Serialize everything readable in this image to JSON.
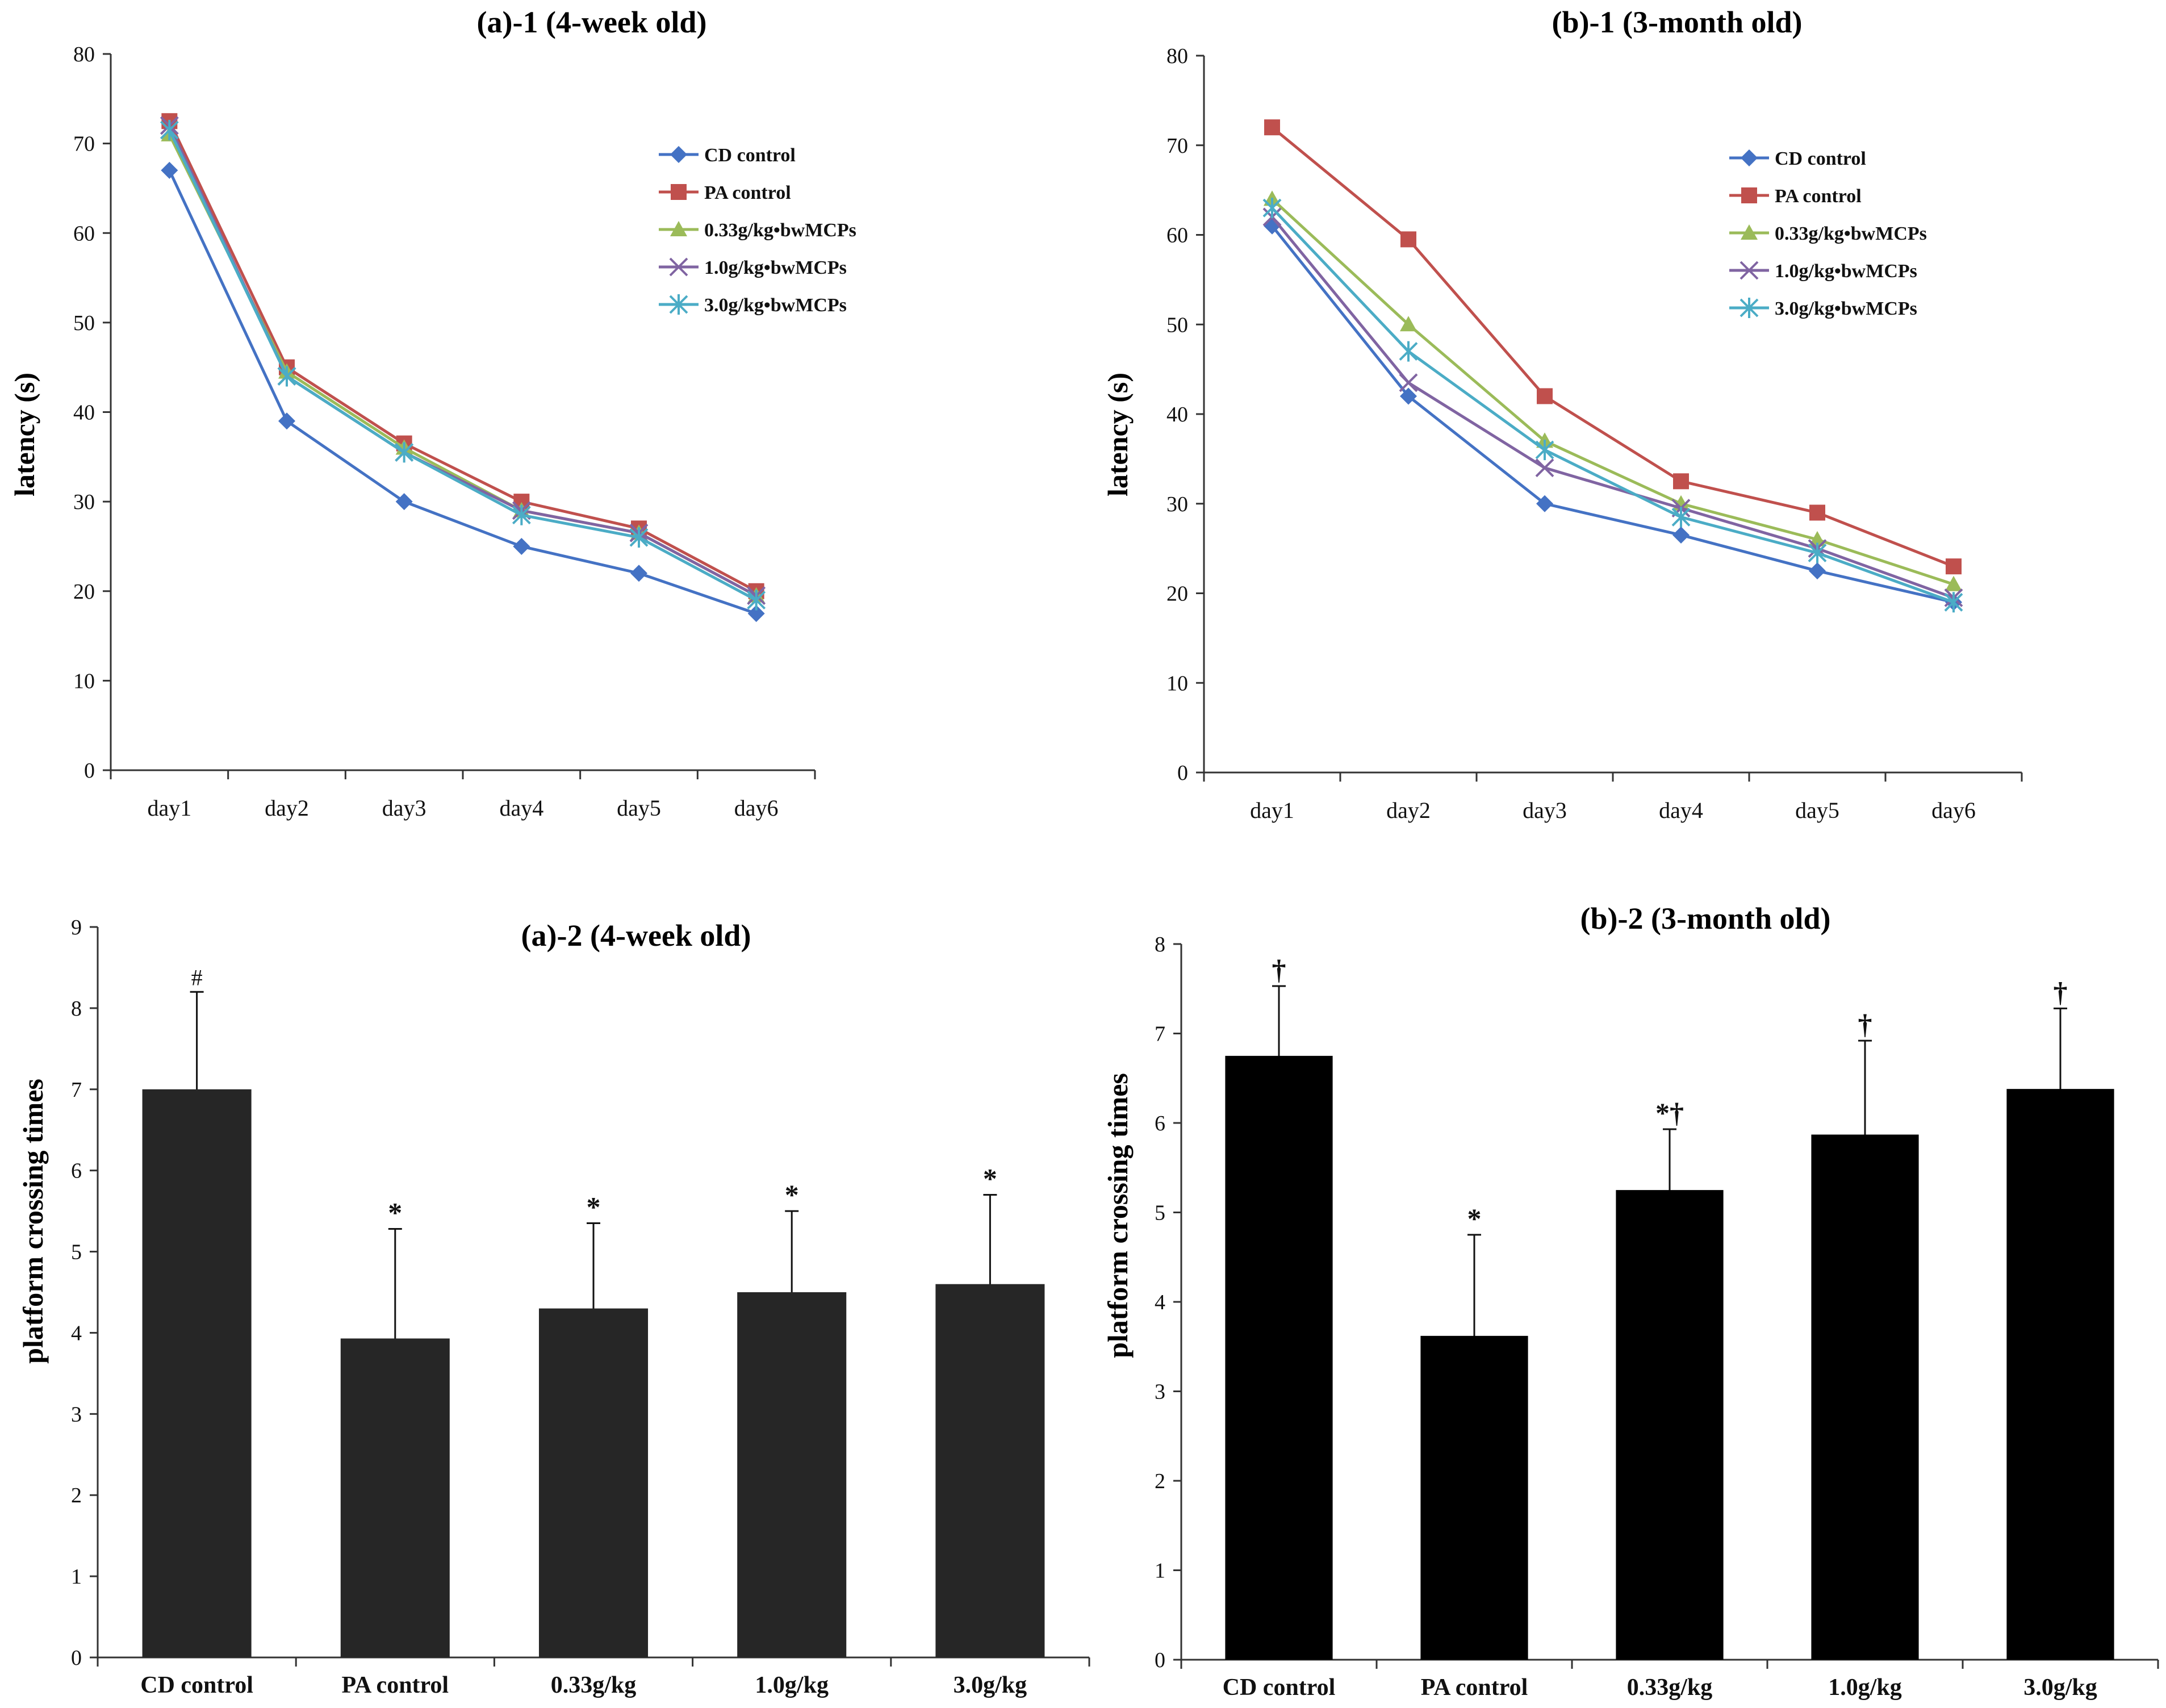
{
  "chart_data": [
    {
      "id": "a1",
      "type": "line",
      "title": "(a)-1 (4-week old)",
      "xlabel": "",
      "ylabel": "latency (s)",
      "categories": [
        "day1",
        "day2",
        "day3",
        "day4",
        "day5",
        "day6"
      ],
      "ylim": [
        0,
        80
      ],
      "yticks": [
        0,
        10,
        20,
        30,
        40,
        50,
        60,
        70,
        80
      ],
      "legend_position": "top-right",
      "series": [
        {
          "name": "CD control",
          "color": "#4472C4",
          "marker": "diamond",
          "values": [
            67,
            39,
            30,
            25,
            22,
            17.5
          ]
        },
        {
          "name": "PA control",
          "color": "#C0504D",
          "marker": "square",
          "values": [
            72.5,
            45,
            36.5,
            30,
            27,
            20
          ]
        },
        {
          "name": "0.33g/kg•bwMCPs",
          "color": "#9BBB59",
          "marker": "triangle",
          "values": [
            71,
            44.5,
            36,
            29,
            26.5,
            19.5
          ]
        },
        {
          "name": "1.0g/kg•bwMCPs",
          "color": "#8064A2",
          "marker": "x",
          "values": [
            72,
            44,
            35.5,
            29,
            26.5,
            19.5
          ]
        },
        {
          "name": "3.0g/kg•bwMCPs",
          "color": "#4BACC6",
          "marker": "star",
          "values": [
            71.5,
            44,
            35.5,
            28.5,
            26,
            19
          ]
        }
      ]
    },
    {
      "id": "b1",
      "type": "line",
      "title": "(b)-1 (3-month old)",
      "xlabel": "",
      "ylabel": "latency (s)",
      "categories": [
        "day1",
        "day2",
        "day3",
        "day4",
        "day5",
        "day6"
      ],
      "ylim": [
        0,
        80
      ],
      "yticks": [
        0,
        10,
        20,
        30,
        40,
        50,
        60,
        70,
        80
      ],
      "legend_position": "top-right",
      "series": [
        {
          "name": "CD control",
          "color": "#4472C4",
          "marker": "diamond",
          "values": [
            61,
            42,
            30,
            26.5,
            22.5,
            19
          ]
        },
        {
          "name": "PA control",
          "color": "#C0504D",
          "marker": "square",
          "values": [
            72,
            59.5,
            42,
            32.5,
            29,
            23
          ]
        },
        {
          "name": "0.33g/kg•bwMCPs",
          "color": "#9BBB59",
          "marker": "triangle",
          "values": [
            64,
            50,
            37,
            30,
            26,
            21
          ]
        },
        {
          "name": "1.0g/kg•bwMCPs",
          "color": "#8064A2",
          "marker": "x",
          "values": [
            62,
            43.5,
            34,
            29.5,
            25,
            19.5
          ]
        },
        {
          "name": "3.0g/kg•bwMCPs",
          "color": "#4BACC6",
          "marker": "star",
          "values": [
            63,
            47,
            36,
            28.5,
            24.5,
            19
          ]
        }
      ]
    },
    {
      "id": "a2",
      "type": "bar",
      "title": "(a)-2 (4-week old)",
      "xlabel": "",
      "ylabel": "platform crossing times",
      "categories": [
        "CD control",
        "PA control",
        "0.33g/kg",
        "1.0g/kg",
        "3.0g/kg"
      ],
      "values": [
        7.0,
        3.93,
        4.3,
        4.5,
        4.6
      ],
      "errors": [
        1.2,
        1.35,
        1.05,
        1.0,
        1.1
      ],
      "annotations": [
        "#",
        "*",
        "*",
        "*",
        "*"
      ],
      "ylim": [
        0,
        9
      ],
      "yticks": [
        0,
        1,
        2,
        3,
        4,
        5,
        6,
        7,
        8,
        9
      ],
      "bar_color": "#262626"
    },
    {
      "id": "b2",
      "type": "bar",
      "title": "(b)-2 (3-month old)",
      "xlabel": "",
      "ylabel": "platform crossing times",
      "categories": [
        "CD control",
        "PA control",
        "0.33g/kg",
        "1.0g/kg",
        "3.0g/kg"
      ],
      "values": [
        6.75,
        3.62,
        5.25,
        5.87,
        6.38
      ],
      "errors": [
        0.78,
        1.13,
        0.68,
        1.05,
        0.9
      ],
      "annotations": [
        "†",
        "*",
        "*†",
        "†",
        "†"
      ],
      "ylim": [
        0,
        8
      ],
      "yticks": [
        0,
        1,
        2,
        3,
        4,
        5,
        6,
        7,
        8
      ],
      "bar_color": "#000000"
    }
  ]
}
